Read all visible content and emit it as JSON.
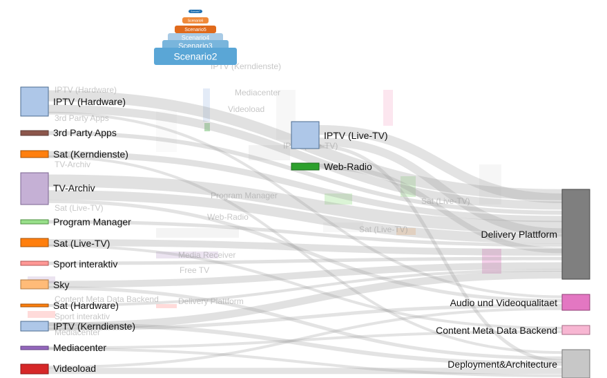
{
  "scenarios": [
    {
      "label": "Scenario7",
      "color": "#1f6fb0"
    },
    {
      "label": "Scenario6",
      "color": "#f08a3a"
    },
    {
      "label": "Scenario5",
      "color": "#e06a1c"
    },
    {
      "label": "Scenario4",
      "color": "#a9cbe6"
    },
    {
      "label": "Scenario3",
      "color": "#79b5dc"
    },
    {
      "label": "Scenario2",
      "color": "#5aa6d6"
    }
  ],
  "source_nodes": [
    {
      "label": "IPTV (Hardware)",
      "color": "#aec7e8",
      "stroke": "#4b6b8f"
    },
    {
      "label": "3rd Party Apps",
      "color": "#8c564b",
      "stroke": "#5b3a33"
    },
    {
      "label": "Sat (Kerndienste)",
      "color": "#ff7f0e",
      "stroke": "#a24f06"
    },
    {
      "label": "TV-Archiv",
      "color": "#c5b0d5",
      "stroke": "#7b6591"
    },
    {
      "label": "Program Manager",
      "color": "#98df8a",
      "stroke": "#4f8f42"
    },
    {
      "label": "Sat (Live-TV)",
      "color": "#ff7f0e",
      "stroke": "#a24f06"
    },
    {
      "label": "Sport interaktiv",
      "color": "#ff9896",
      "stroke": "#b25654"
    },
    {
      "label": "Sky",
      "color": "#ffbb78",
      "stroke": "#b07a3f"
    },
    {
      "label": "Sat (Hardware)",
      "color": "#ff7f0e",
      "stroke": "#a24f06"
    },
    {
      "label": "IPTV (Kerndienste)",
      "color": "#aec7e8",
      "stroke": "#4b6b8f"
    },
    {
      "label": "Mediacenter",
      "color": "#9467bd",
      "stroke": "#5e3f80"
    },
    {
      "label": "Videoload",
      "color": "#d62728",
      "stroke": "#8a1516"
    }
  ],
  "middle_nodes": [
    {
      "label": "IPTV (Live-TV)",
      "color": "#aec7e8",
      "stroke": "#4b6b8f"
    },
    {
      "label": "Web-Radio",
      "color": "#2ca02c",
      "stroke": "#1b6b1b"
    }
  ],
  "target_nodes": [
    {
      "label": "Delivery Plattform",
      "color": "#7f7f7f",
      "stroke": "#444"
    },
    {
      "label": "Audio und Videoqualitaet",
      "color": "#e377c2",
      "stroke": "#8f3f76"
    },
    {
      "label": "Content Meta Data Backend",
      "color": "#f7b6d2",
      "stroke": "#a56a85"
    },
    {
      "label": "Deployment&Architecture",
      "color": "#c7c7c7",
      "stroke": "#777"
    }
  ],
  "ghost_labels": [
    "IPTV (Hardware)",
    "3rd Party Apps",
    "TV-Archiv",
    "Program Manager",
    "Sat (Live-TV)",
    "IPTV (Kerndienste)",
    "Mediacenter",
    "Videoload",
    "IPTV (Live-TV)",
    "Sat (Live-TV)",
    "Sat (Live-TV)",
    "Web-Radio",
    "Delivery Plattform",
    "Content Meta Data Backend",
    "Sport interaktiv",
    "Mediacenter",
    "Media Receiver",
    "Free TV"
  ]
}
